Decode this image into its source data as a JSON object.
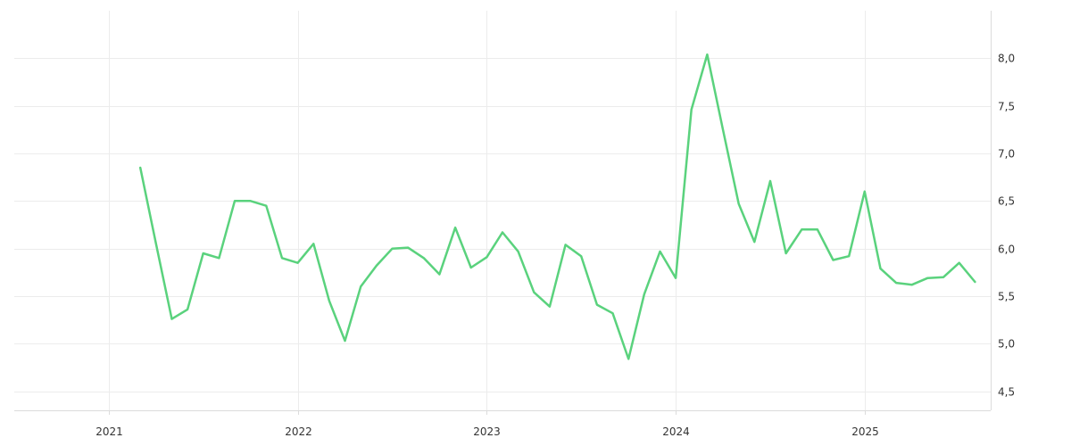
{
  "chart_data": {
    "type": "line",
    "title": "",
    "xlabel": "",
    "ylabel": "",
    "x_ticks": [
      {
        "label": "2021",
        "date": "2021-01"
      },
      {
        "label": "2022",
        "date": "2022-01"
      },
      {
        "label": "2023",
        "date": "2023-01"
      },
      {
        "label": "2024",
        "date": "2024-01"
      },
      {
        "label": "2025",
        "date": "2025-01"
      }
    ],
    "y_ticks": [
      {
        "value": 4.5,
        "label": "4,5"
      },
      {
        "value": 5.0,
        "label": "5,0"
      },
      {
        "value": 5.5,
        "label": "5,5"
      },
      {
        "value": 6.0,
        "label": "6,0"
      },
      {
        "value": 6.5,
        "label": "6,5"
      },
      {
        "value": 7.0,
        "label": "7,0"
      },
      {
        "value": 7.5,
        "label": "7,5"
      },
      {
        "value": 8.0,
        "label": "8,0"
      }
    ],
    "xlim": [
      "2020-07",
      "2025-09"
    ],
    "ylim": [
      4.3,
      8.5
    ],
    "grid": true,
    "y_axis_side": "right",
    "legend": "none",
    "series": [
      {
        "color": "#5ad27d",
        "x": [
          "2021-03",
          "2021-04",
          "2021-05",
          "2021-06",
          "2021-07",
          "2021-08",
          "2021-09",
          "2021-10",
          "2021-11",
          "2021-12",
          "2022-01",
          "2022-02",
          "2022-03",
          "2022-04",
          "2022-05",
          "2022-06",
          "2022-07",
          "2022-08",
          "2022-09",
          "2022-10",
          "2022-11",
          "2022-12",
          "2023-01",
          "2023-02",
          "2023-03",
          "2023-04",
          "2023-05",
          "2023-06",
          "2023-07",
          "2023-08",
          "2023-09",
          "2023-10",
          "2023-11",
          "2023-12",
          "2024-01",
          "2024-02",
          "2024-03",
          "2024-04",
          "2024-05",
          "2024-06",
          "2024-07",
          "2024-08",
          "2024-09",
          "2024-10",
          "2024-11",
          "2024-12",
          "2025-01",
          "2025-02",
          "2025-03",
          "2025-04",
          "2025-05",
          "2025-06",
          "2025-07",
          "2025-08"
        ],
        "values": [
          6.85,
          6.05,
          5.26,
          5.36,
          5.95,
          5.9,
          6.5,
          6.5,
          6.45,
          5.9,
          5.85,
          6.05,
          5.45,
          5.03,
          5.6,
          5.82,
          6.0,
          6.01,
          5.9,
          5.73,
          6.22,
          5.8,
          5.91,
          6.17,
          5.97,
          5.54,
          5.39,
          6.04,
          5.92,
          5.41,
          5.32,
          4.84,
          5.52,
          5.97,
          5.69,
          7.46,
          8.04,
          7.25,
          6.47,
          6.07,
          6.71,
          5.95,
          6.2,
          6.2,
          5.88,
          5.92,
          6.6,
          5.79,
          5.64,
          5.62,
          5.69,
          5.7,
          5.85,
          5.65
        ]
      }
    ]
  }
}
